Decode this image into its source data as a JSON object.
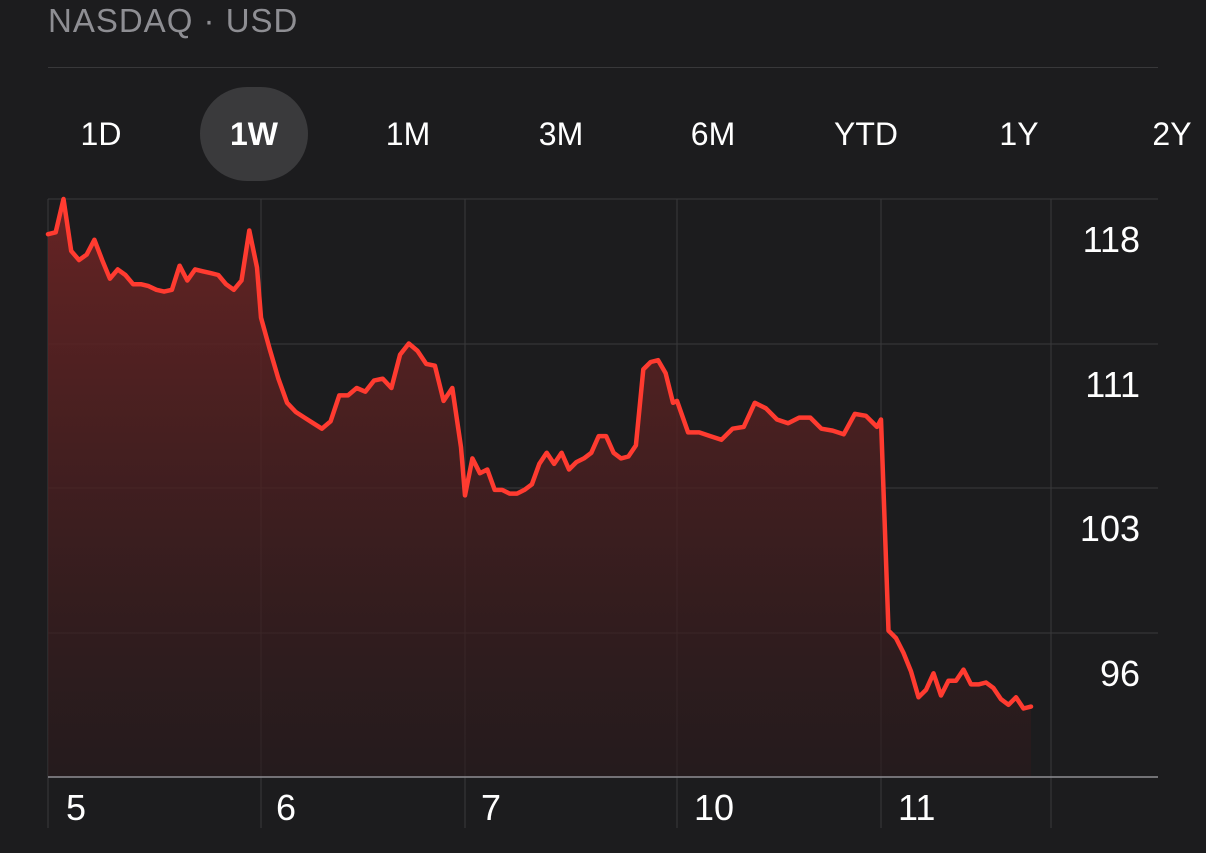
{
  "header": {
    "exchange_label": "NASDAQ · USD"
  },
  "tabs": [
    {
      "label": "1D",
      "active": false
    },
    {
      "label": "1W",
      "active": true
    },
    {
      "label": "1M",
      "active": false
    },
    {
      "label": "3M",
      "active": false
    },
    {
      "label": "6M",
      "active": false
    },
    {
      "label": "YTD",
      "active": false
    },
    {
      "label": "1Y",
      "active": false
    },
    {
      "label": "2Y",
      "active": false
    }
  ],
  "colors": {
    "background": "#1c1c1e",
    "line": "#ff3b30",
    "fill_top": "#6b2424",
    "grid": "#3a3a3c",
    "text": "#ffffff",
    "muted_text": "#8e8e93"
  },
  "chart_data": {
    "type": "area",
    "x_tick_labels": [
      "5",
      "6",
      "7",
      "10",
      "11"
    ],
    "y_tick_labels": [
      "118",
      "111",
      "103",
      "96"
    ],
    "y_ticks": [
      118,
      111,
      103,
      96
    ],
    "ylim": [
      88.7,
      119.9
    ],
    "grid": true,
    "series": [
      {
        "day_values": [
          [
            118.0,
            118.1,
            119.9,
            117.1,
            116.6,
            116.9,
            117.7,
            116.6,
            115.6,
            116.1,
            115.8,
            115.3,
            115.3,
            115.2,
            115.0,
            114.9,
            115.0,
            116.3,
            115.5,
            116.1,
            116.0,
            115.9,
            115.8,
            115.3,
            115.0,
            115.5,
            118.2,
            116.2
          ],
          [
            113.5,
            111.8,
            110.2,
            108.9,
            108.4,
            108.1,
            107.8,
            107.5,
            107.9,
            109.3,
            109.3,
            109.7,
            109.5,
            110.1,
            110.2,
            109.7,
            111.5,
            112.1,
            111.7,
            111.0,
            110.9,
            109.0,
            109.7,
            106.5
          ],
          [
            103.9,
            105.9,
            105.1,
            105.3,
            104.2,
            104.2,
            104.0,
            104.0,
            104.2,
            104.5,
            105.6,
            106.2,
            105.6,
            106.2,
            105.3,
            105.7,
            105.9,
            106.2,
            107.1,
            107.1,
            106.2,
            105.9,
            106.0,
            106.6,
            110.7,
            111.1,
            111.2,
            110.5,
            108.9
          ],
          [
            109.0,
            107.3,
            107.3,
            107.1,
            106.9,
            107.5,
            107.6,
            108.9,
            108.6,
            108.0,
            107.8,
            108.1,
            108.1,
            107.5,
            107.4,
            107.2,
            108.3,
            108.2,
            107.6
          ],
          [
            108.0,
            96.6,
            96.2,
            95.4,
            94.4,
            93.0,
            93.4,
            94.3,
            93.1,
            93.9,
            93.9,
            94.5,
            93.7,
            93.7,
            93.8,
            93.5,
            92.9,
            92.6,
            93.0,
            92.4,
            92.5
          ]
        ]
      }
    ]
  }
}
